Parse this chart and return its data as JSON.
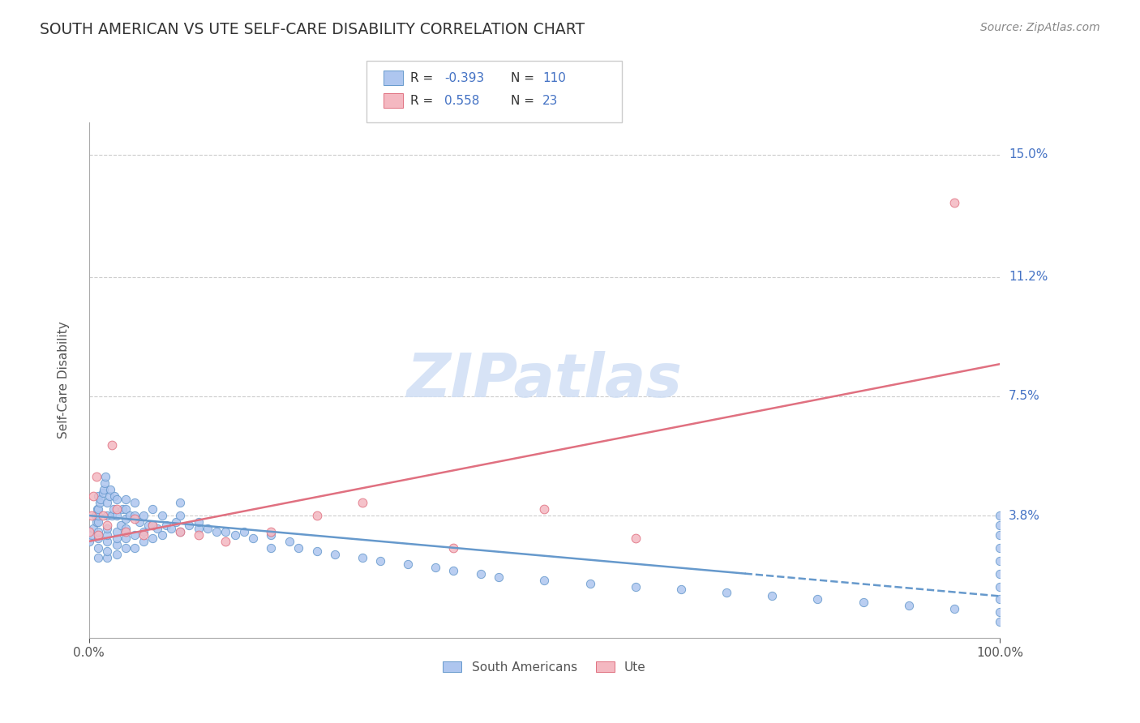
{
  "title": "SOUTH AMERICAN VS UTE SELF-CARE DISABILITY CORRELATION CHART",
  "source": "Source: ZipAtlas.com",
  "ylabel": "Self-Care Disability",
  "xlim": [
    0,
    1.0
  ],
  "ylim": [
    0,
    0.16
  ],
  "yticks": [
    0.038,
    0.075,
    0.112,
    0.15
  ],
  "ytick_labels": [
    "3.8%",
    "7.5%",
    "11.2%",
    "15.0%"
  ],
  "xticks": [
    0.0,
    1.0
  ],
  "xtick_labels": [
    "0.0%",
    "100.0%"
  ],
  "background_color": "#ffffff",
  "grid_color": "#cccccc",
  "south_american": {
    "color_fill": "#aec6ef",
    "color_edge": "#6699cc",
    "R": -0.393,
    "N": 110,
    "line_color": "#6699cc",
    "x": [
      0.0,
      0.003,
      0.005,
      0.007,
      0.008,
      0.009,
      0.01,
      0.01,
      0.01,
      0.01,
      0.01,
      0.01,
      0.01,
      0.01,
      0.012,
      0.013,
      0.015,
      0.016,
      0.017,
      0.018,
      0.02,
      0.02,
      0.02,
      0.02,
      0.02,
      0.02,
      0.02,
      0.022,
      0.023,
      0.025,
      0.027,
      0.028,
      0.03,
      0.03,
      0.03,
      0.03,
      0.03,
      0.03,
      0.035,
      0.037,
      0.04,
      0.04,
      0.04,
      0.04,
      0.04,
      0.04,
      0.045,
      0.05,
      0.05,
      0.05,
      0.05,
      0.055,
      0.06,
      0.06,
      0.06,
      0.065,
      0.07,
      0.07,
      0.07,
      0.075,
      0.08,
      0.08,
      0.085,
      0.09,
      0.095,
      0.1,
      0.1,
      0.1,
      0.11,
      0.12,
      0.12,
      0.13,
      0.14,
      0.15,
      0.16,
      0.17,
      0.18,
      0.2,
      0.2,
      0.22,
      0.23,
      0.25,
      0.27,
      0.3,
      0.32,
      0.35,
      0.38,
      0.4,
      0.43,
      0.45,
      0.5,
      0.55,
      0.6,
      0.65,
      0.7,
      0.75,
      0.8,
      0.85,
      0.9,
      0.95,
      1.0,
      1.0,
      1.0,
      1.0,
      1.0,
      1.0,
      1.0,
      1.0,
      1.0,
      1.0
    ],
    "y": [
      0.03,
      0.032,
      0.034,
      0.038,
      0.036,
      0.04,
      0.025,
      0.028,
      0.031,
      0.033,
      0.036,
      0.038,
      0.04,
      0.044,
      0.042,
      0.043,
      0.045,
      0.046,
      0.048,
      0.05,
      0.025,
      0.027,
      0.03,
      0.032,
      0.034,
      0.038,
      0.042,
      0.044,
      0.046,
      0.038,
      0.04,
      0.044,
      0.026,
      0.029,
      0.031,
      0.033,
      0.038,
      0.043,
      0.035,
      0.04,
      0.028,
      0.031,
      0.034,
      0.037,
      0.04,
      0.043,
      0.038,
      0.028,
      0.032,
      0.038,
      0.042,
      0.036,
      0.03,
      0.033,
      0.038,
      0.035,
      0.031,
      0.035,
      0.04,
      0.034,
      0.032,
      0.038,
      0.035,
      0.034,
      0.036,
      0.033,
      0.038,
      0.042,
      0.035,
      0.034,
      0.036,
      0.034,
      0.033,
      0.033,
      0.032,
      0.033,
      0.031,
      0.032,
      0.028,
      0.03,
      0.028,
      0.027,
      0.026,
      0.025,
      0.024,
      0.023,
      0.022,
      0.021,
      0.02,
      0.019,
      0.018,
      0.017,
      0.016,
      0.015,
      0.014,
      0.013,
      0.012,
      0.011,
      0.01,
      0.009,
      0.038,
      0.035,
      0.032,
      0.028,
      0.024,
      0.02,
      0.016,
      0.012,
      0.008,
      0.005
    ]
  },
  "ute": {
    "color_fill": "#f4b8c1",
    "color_edge": "#e07080",
    "R": 0.558,
    "N": 23,
    "line_color": "#e07080",
    "x": [
      0.0,
      0.003,
      0.005,
      0.008,
      0.01,
      0.015,
      0.02,
      0.025,
      0.03,
      0.04,
      0.05,
      0.06,
      0.07,
      0.1,
      0.12,
      0.15,
      0.2,
      0.25,
      0.3,
      0.4,
      0.5,
      0.6,
      0.95
    ],
    "y": [
      0.033,
      0.038,
      0.044,
      0.05,
      0.032,
      0.038,
      0.035,
      0.06,
      0.04,
      0.033,
      0.037,
      0.032,
      0.035,
      0.033,
      0.032,
      0.03,
      0.033,
      0.038,
      0.042,
      0.028,
      0.04,
      0.031,
      0.135
    ]
  },
  "title_color": "#333333",
  "axis_label_color": "#555555",
  "watermark_color": "#d0dff5",
  "legend_R_color": "#4472c4"
}
